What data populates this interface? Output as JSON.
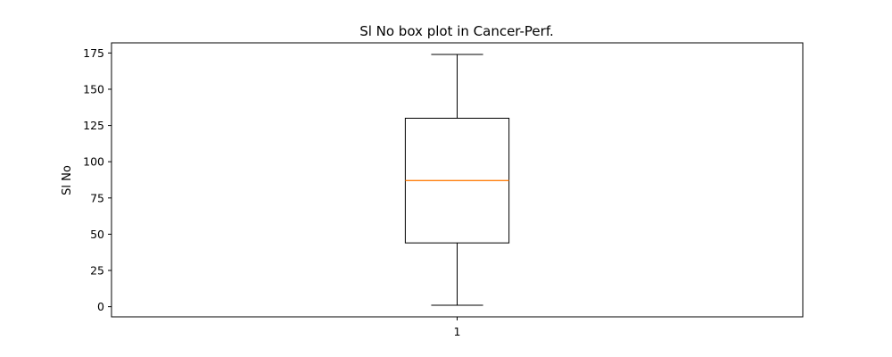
{
  "chart_data": {
    "type": "box",
    "title": "Sl No box plot in Cancer-Perf.",
    "xlabel": "",
    "ylabel": "Sl No",
    "categories": [
      "1"
    ],
    "boxes": [
      {
        "category": "1",
        "whisker_low": 1,
        "q1": 44,
        "median": 87,
        "q3": 130,
        "whisker_high": 174
      }
    ],
    "ylim": [
      -7,
      182
    ],
    "yticks": [
      0,
      25,
      50,
      75,
      100,
      125,
      150,
      175
    ],
    "grid": false,
    "colors": {
      "box": "#000000",
      "median": "#ff7f0e",
      "whisker": "#000000"
    }
  }
}
